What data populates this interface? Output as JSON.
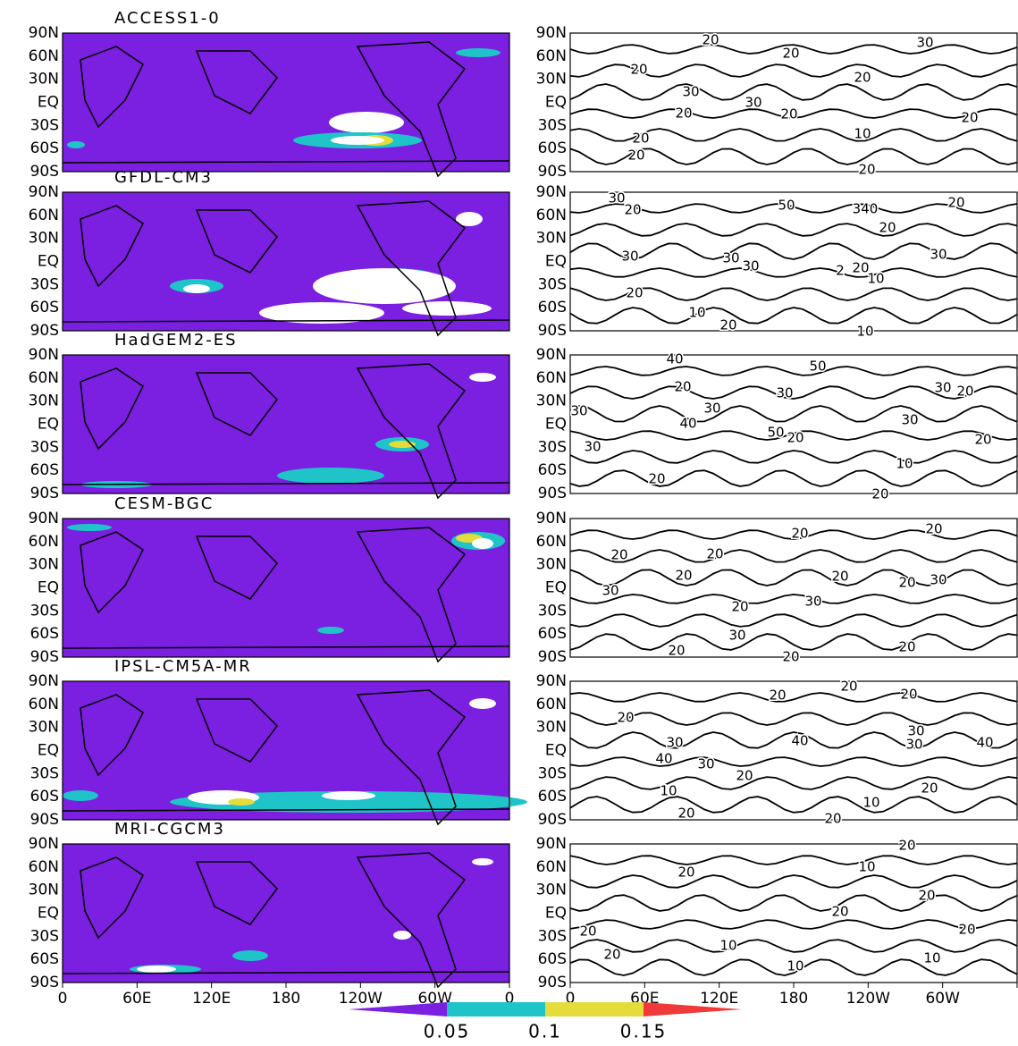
{
  "panels": [
    {
      "title": "ACCESS1-0",
      "contour_labels": [
        "20",
        "30",
        "20",
        "20",
        "20",
        "30",
        "30",
        "20",
        "20",
        "20",
        "10",
        "20",
        "20",
        "20"
      ]
    },
    {
      "title": "GFDL-CM3",
      "contour_labels": [
        "30",
        "20",
        "50",
        "340",
        "20",
        "20",
        "30",
        "30",
        "30",
        "30",
        "2",
        "20",
        "10",
        "20",
        "10",
        "20",
        "10"
      ]
    },
    {
      "title": "HadGEM2-ES",
      "contour_labels": [
        "40",
        "50",
        "20",
        "30",
        "30",
        "20",
        "30",
        "30",
        "40",
        "50",
        "20",
        "30",
        "20",
        "30",
        "10",
        "20",
        "20"
      ]
    },
    {
      "title": "CESM-BGC",
      "contour_labels": [
        "20",
        "20",
        "20",
        "20",
        "20",
        "20",
        "20",
        "30",
        "30",
        "20",
        "30",
        "30",
        "20",
        "20",
        "20"
      ]
    },
    {
      "title": "IPSL-CM5A-MR",
      "contour_labels": [
        "20",
        "20",
        "20",
        "20",
        "30",
        "40",
        "30",
        "30",
        "40",
        "40",
        "30",
        "20",
        "10",
        "20",
        "10",
        "20",
        "20"
      ]
    },
    {
      "title": "MRI-CGCM3",
      "contour_labels": [
        "20",
        "10",
        "20",
        "20",
        "20",
        "20",
        "20",
        "10",
        "20",
        "10",
        "10"
      ]
    }
  ],
  "lat_labels": [
    "90N",
    "60N",
    "30N",
    "EQ",
    "30S",
    "60S",
    "90S"
  ],
  "lon_labels": [
    "0",
    "60E",
    "120E",
    "180",
    "120W",
    "60W",
    "0"
  ],
  "colorbar": {
    "colors": [
      "#7b1fe0",
      "#1fc4c8",
      "#e3dc3a",
      "#f03a3a"
    ],
    "labels": [
      "0.05",
      "0.1",
      "0.15"
    ]
  }
}
